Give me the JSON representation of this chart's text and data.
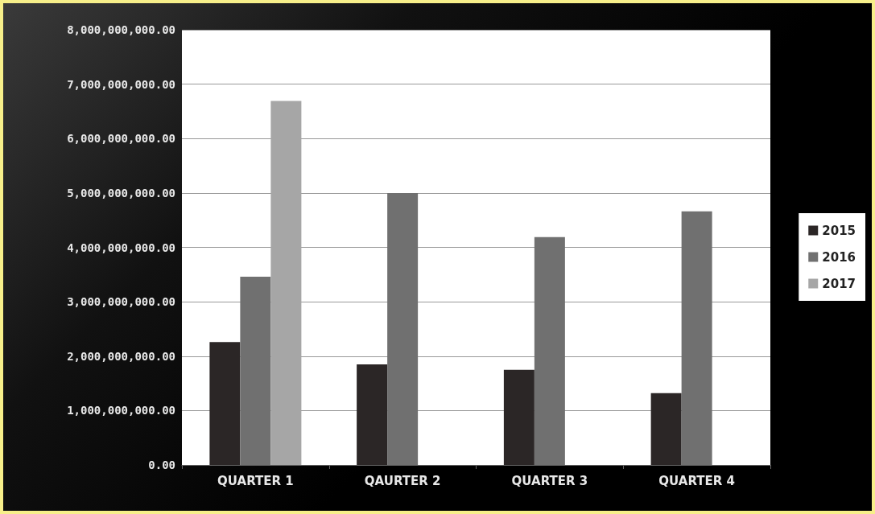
{
  "chart_data": {
    "type": "bar",
    "categories": [
      "QUARTER 1",
      "QAURTER 2",
      "QUARTER 3",
      "QUARTER 4"
    ],
    "series": [
      {
        "name": "2015",
        "color": "#2b2626",
        "values": [
          2260000000,
          1850000000,
          1750000000,
          1320000000
        ]
      },
      {
        "name": "2016",
        "color": "#707070",
        "values": [
          3460000000,
          5000000000,
          4190000000,
          4660000000
        ]
      },
      {
        "name": "2017",
        "color": "#a6a6a6",
        "values": [
          6690000000,
          null,
          null,
          null
        ]
      }
    ],
    "ylim": [
      0,
      8000000000
    ],
    "yticks": [
      {
        "value": 0,
        "label": "0.00"
      },
      {
        "value": 1000000000,
        "label": "1,000,000,000.00"
      },
      {
        "value": 2000000000,
        "label": "2,000,000,000.00"
      },
      {
        "value": 3000000000,
        "label": "3,000,000,000.00"
      },
      {
        "value": 4000000000,
        "label": "4,000,000,000.00"
      },
      {
        "value": 5000000000,
        "label": "5,000,000,000.00"
      },
      {
        "value": 6000000000,
        "label": "6,000,000,000.00"
      },
      {
        "value": 7000000000,
        "label": "7,000,000,000.00"
      },
      {
        "value": 8000000000,
        "label": "8,000,000,000.00"
      }
    ],
    "grid": "y",
    "legend": "right"
  }
}
